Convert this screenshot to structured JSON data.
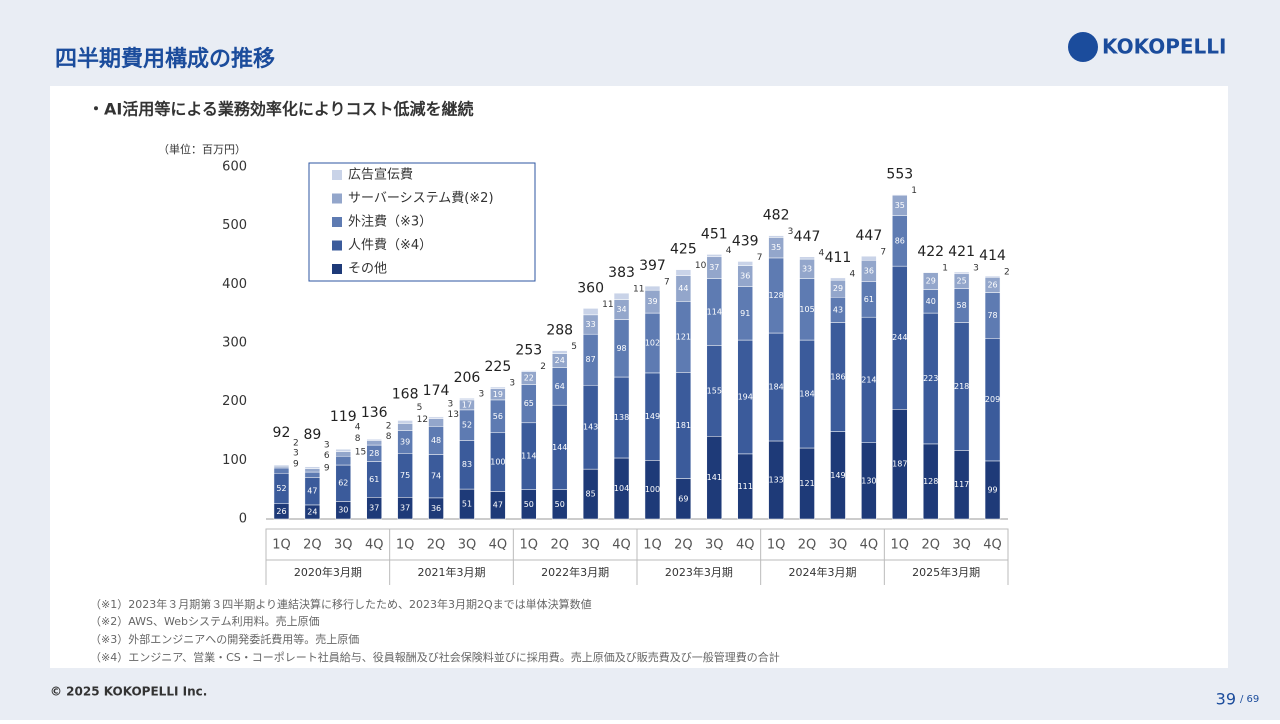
{
  "header": {
    "title": "四半期費用構成の推移",
    "logo": "KOKOPELLI"
  },
  "bullet": "・AI活用等による業務効率化によりコスト低減を継続",
  "footnotes": [
    "（※1）2023年３月期第３四半期より連結決算に移行したため、2023年3月期2Qまでは単体決算数値",
    "（※2）AWS、Webシステム利用料。売上原価",
    "（※3）外部エンジニアへの開発委託費用等。売上原価",
    "（※4）エンジニア、営業・CS・コーポレート社員給与、役員報酬及び社会保険料並びに採用費。売上原価及び販売費及び一般管理費の合計"
  ],
  "footer": {
    "copyright": "© 2025 KOKOPELLI Inc.",
    "page": "39",
    "total": "/ 69"
  },
  "chart_data": {
    "type": "stacked_bar",
    "unit_label": "（単位：百万円）",
    "categories": [
      "1Q",
      "2Q",
      "3Q",
      "4Q",
      "1Q",
      "2Q",
      "3Q",
      "4Q",
      "1Q",
      "2Q",
      "3Q",
      "4Q",
      "1Q",
      "2Q",
      "3Q",
      "4Q",
      "1Q",
      "2Q",
      "3Q",
      "4Q",
      "1Q",
      "2Q",
      "3Q",
      "4Q"
    ],
    "groups": [
      "2020年3月期",
      "2021年3月期",
      "2022年3月期",
      "2023年3月期",
      "2024年3月期",
      "2025年3月期"
    ],
    "series": [
      {
        "name": "その他",
        "color": "#1e3a78",
        "values": [
          26,
          24,
          30,
          37,
          37,
          36,
          51,
          47,
          50,
          50,
          85,
          104,
          100,
          69,
          141,
          111,
          133,
          121,
          149,
          130,
          187,
          128,
          117,
          99
        ]
      },
      {
        "name": "人件費（※4）",
        "color": "#3b5b9b",
        "values": [
          52,
          47,
          62,
          61,
          75,
          74,
          83,
          100,
          114,
          144,
          143,
          138,
          149,
          181,
          155,
          194,
          184,
          184,
          186,
          214,
          244,
          223,
          218,
          209
        ]
      },
      {
        "name": "外注費（※3）",
        "color": "#5e7bb2",
        "values": [
          9,
          9,
          15,
          28,
          39,
          48,
          52,
          56,
          65,
          64,
          87,
          98,
          102,
          121,
          114,
          91,
          128,
          105,
          43,
          61,
          86,
          40,
          58,
          78
        ]
      },
      {
        "name": "サーバーシステム費(※2)",
        "color": "#93a6cb",
        "values": [
          3,
          6,
          8,
          8,
          12,
          13,
          17,
          19,
          22,
          24,
          33,
          34,
          39,
          44,
          37,
          36,
          35,
          33,
          29,
          36,
          35,
          29,
          25,
          26
        ]
      },
      {
        "name": "広告宣伝費",
        "color": "#c9d3e8",
        "values": [
          2,
          3,
          4,
          2,
          5,
          3,
          3,
          3,
          2,
          5,
          11,
          11,
          7,
          10,
          4,
          7,
          3,
          4,
          4,
          7,
          1,
          1,
          3,
          2
        ]
      }
    ],
    "totals": [
      92,
      89,
      119,
      136,
      168,
      174,
      206,
      225,
      253,
      288,
      360,
      383,
      397,
      425,
      451,
      439,
      482,
      447,
      411,
      447,
      553,
      422,
      421,
      414
    ],
    "ylim": [
      0,
      600
    ],
    "yticks": [
      0,
      100,
      200,
      300,
      400,
      500,
      600
    ],
    "grid": false,
    "legend": "top-left"
  }
}
